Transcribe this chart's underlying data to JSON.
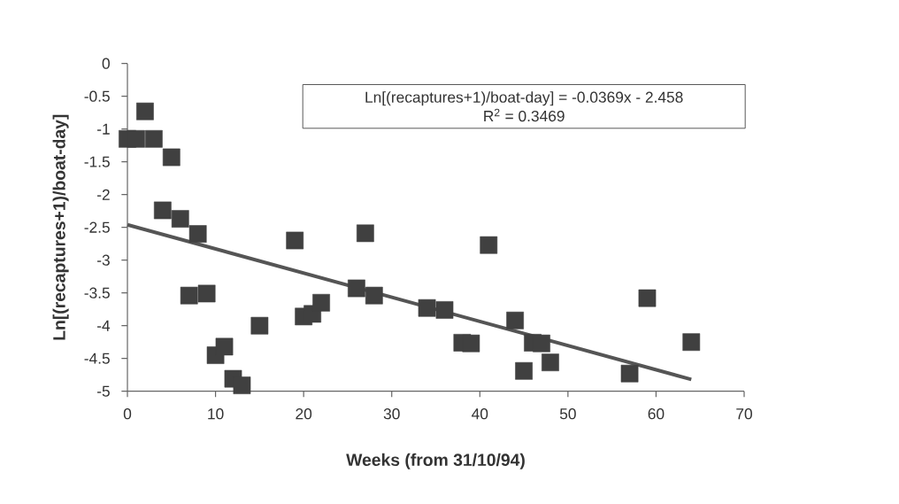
{
  "chart_data": {
    "type": "scatter",
    "xlabel": "Weeks (from 31/10/94)",
    "ylabel": "Ln[(recaptures+1)/boat-day]",
    "annotations": [
      "Ln[(recaptures+1)/boat-day] = -0.0369x - 2.458",
      "R$^{2}$ = 0.3469"
    ],
    "xlim": [
      0,
      70
    ],
    "ylim": [
      -5,
      0
    ],
    "xticks": [
      0,
      10,
      20,
      30,
      40,
      50,
      60,
      70
    ],
    "yticks": [
      -5,
      -4.5,
      -4,
      -3.5,
      -3,
      -2.5,
      -2,
      -1.5,
      -1,
      -0.5,
      0
    ],
    "grid": false,
    "marker": "square",
    "series": [
      {
        "color": "#404040",
        "x": [
          0,
          1,
          2,
          3,
          4,
          5,
          6,
          7,
          8,
          9,
          10,
          11,
          12,
          13,
          15,
          19,
          20,
          21,
          22,
          26,
          27,
          28,
          34,
          36,
          38,
          39,
          41,
          44,
          45,
          46,
          47,
          48,
          57,
          59,
          64
        ],
        "values": [
          -1.15,
          -1.15,
          -0.73,
          -1.15,
          -2.24,
          -1.43,
          -2.37,
          -3.54,
          -2.6,
          -3.51,
          -4.45,
          -4.32,
          -4.81,
          -4.91,
          -4.0,
          -2.7,
          -3.86,
          -3.82,
          -3.65,
          -3.43,
          -2.59,
          -3.54,
          -3.73,
          -3.76,
          -4.26,
          -4.27,
          -2.77,
          -3.92,
          -4.69,
          -4.26,
          -4.27,
          -4.56,
          -4.73,
          -3.58,
          -4.25
        ]
      },
      {
        "type": "line",
        "marker": "none",
        "color": "#555555",
        "x": [
          0,
          64
        ],
        "values": [
          -2.46,
          -4.82
        ]
      }
    ]
  }
}
